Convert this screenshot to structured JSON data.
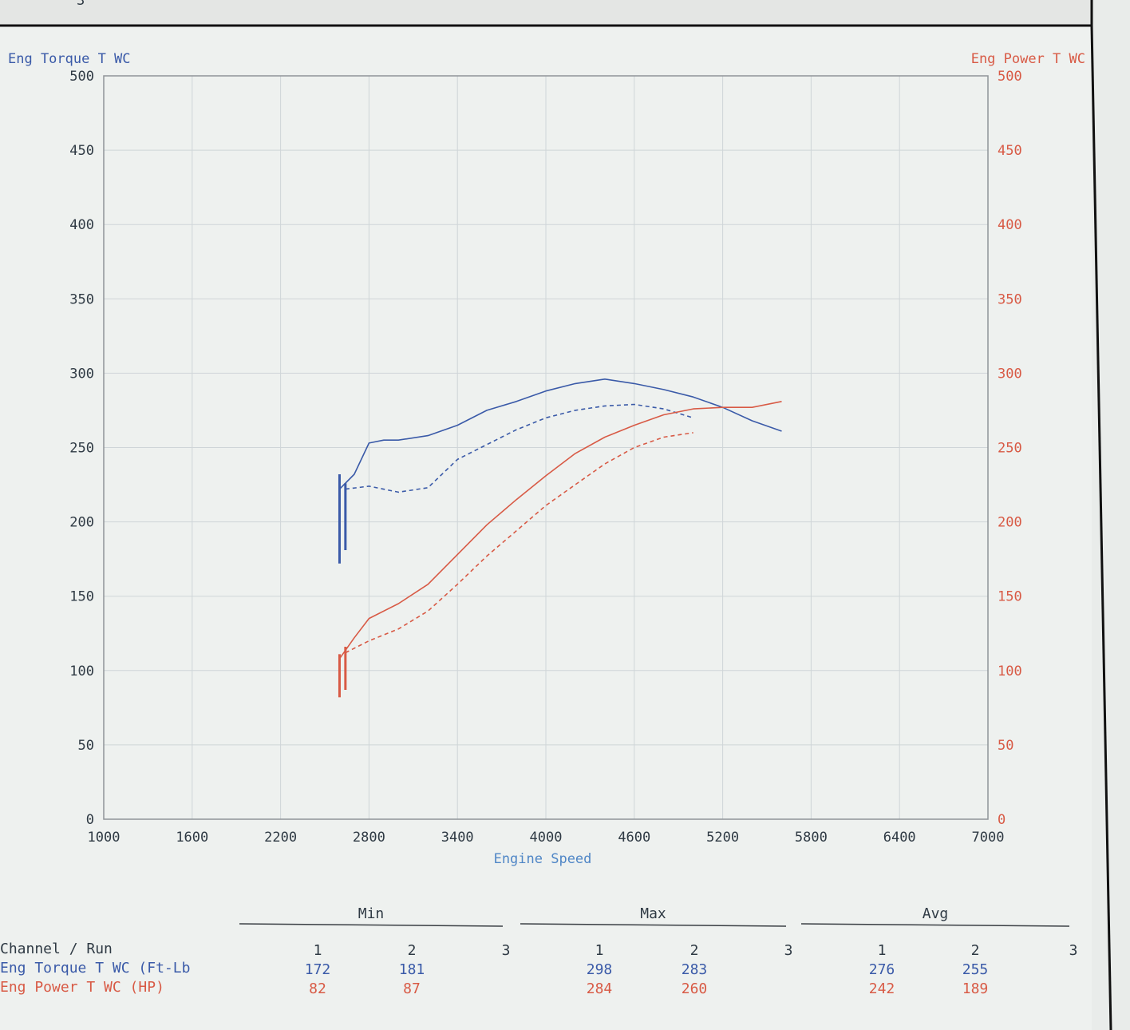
{
  "header": {
    "run_number_fragment": "3"
  },
  "colors": {
    "torque": "#3a5aa8",
    "power": "#d85a45",
    "grid": "#cfd5d8",
    "frame": "#8f9498",
    "text_dark": "#2f3a44",
    "paper": "#eef1ef"
  },
  "chart_data": {
    "type": "line",
    "xlabel": "Engine Speed",
    "y_left_label": "Eng Torque T WC",
    "y_right_label": "Eng Power T WC",
    "xlim": [
      1000,
      7000
    ],
    "ylim_left": [
      0,
      500
    ],
    "ylim_right": [
      0,
      500
    ],
    "x_ticks": [
      "1000",
      "1600",
      "2200",
      "2800",
      "3400",
      "4000",
      "4600",
      "5200",
      "5800",
      "6400",
      "7000"
    ],
    "y_ticks_left": [
      "500",
      "450",
      "400",
      "350",
      "300",
      "250",
      "200",
      "150",
      "100",
      "50",
      "0"
    ],
    "y_ticks_right": [
      "500",
      "450",
      "400",
      "350",
      "300",
      "250",
      "200",
      "150",
      "100",
      "50",
      "0"
    ],
    "grid": true,
    "series": [
      {
        "axis": "left",
        "style": "solid",
        "color": "torque",
        "spike": {
          "x": 2600,
          "y_top": 232,
          "y_bottom": 172
        },
        "points": [
          [
            2600,
            222
          ],
          [
            2700,
            232
          ],
          [
            2800,
            253
          ],
          [
            2900,
            255
          ],
          [
            3000,
            255
          ],
          [
            3200,
            258
          ],
          [
            3400,
            265
          ],
          [
            3600,
            275
          ],
          [
            3800,
            281
          ],
          [
            4000,
            288
          ],
          [
            4200,
            293
          ],
          [
            4400,
            296
          ],
          [
            4600,
            293
          ],
          [
            4800,
            289
          ],
          [
            5000,
            284
          ],
          [
            5200,
            277
          ],
          [
            5400,
            268
          ],
          [
            5600,
            261
          ]
        ]
      },
      {
        "axis": "left",
        "style": "dashed",
        "color": "torque",
        "spike": {
          "x": 2640,
          "y_top": 226,
          "y_bottom": 181
        },
        "points": [
          [
            2640,
            222
          ],
          [
            2800,
            224
          ],
          [
            3000,
            220
          ],
          [
            3200,
            223
          ],
          [
            3400,
            242
          ],
          [
            3600,
            252
          ],
          [
            3800,
            262
          ],
          [
            4000,
            270
          ],
          [
            4200,
            275
          ],
          [
            4400,
            278
          ],
          [
            4600,
            279
          ],
          [
            4800,
            276
          ],
          [
            5000,
            270
          ]
        ]
      },
      {
        "axis": "right",
        "style": "solid",
        "color": "power",
        "spike": {
          "x": 2600,
          "y_top": 111,
          "y_bottom": 82
        },
        "points": [
          [
            2600,
            108
          ],
          [
            2700,
            122
          ],
          [
            2800,
            135
          ],
          [
            3000,
            145
          ],
          [
            3200,
            158
          ],
          [
            3400,
            178
          ],
          [
            3600,
            198
          ],
          [
            3800,
            215
          ],
          [
            4000,
            231
          ],
          [
            4200,
            246
          ],
          [
            4400,
            257
          ],
          [
            4600,
            265
          ],
          [
            4800,
            272
          ],
          [
            5000,
            276
          ],
          [
            5200,
            277
          ],
          [
            5400,
            277
          ],
          [
            5600,
            281
          ]
        ]
      },
      {
        "axis": "right",
        "style": "dashed",
        "color": "power",
        "spike": {
          "x": 2640,
          "y_top": 116,
          "y_bottom": 87
        },
        "points": [
          [
            2640,
            112
          ],
          [
            2800,
            120
          ],
          [
            3000,
            128
          ],
          [
            3200,
            140
          ],
          [
            3400,
            158
          ],
          [
            3600,
            177
          ],
          [
            3800,
            194
          ],
          [
            4000,
            211
          ],
          [
            4200,
            225
          ],
          [
            4400,
            239
          ],
          [
            4600,
            250
          ],
          [
            4800,
            257
          ],
          [
            5000,
            260
          ]
        ]
      }
    ]
  },
  "table": {
    "group_headers": [
      "Min",
      "Max",
      "Avg"
    ],
    "run_header": "Channel / Run",
    "run_numbers": [
      "1",
      "2",
      "3",
      "1",
      "2",
      "3",
      "1",
      "2",
      "3"
    ],
    "rows": [
      {
        "label": "Eng Torque T WC (Ft-Lb",
        "color": "torque",
        "values": [
          "172",
          "181",
          "",
          "298",
          "283",
          "",
          "276",
          "255",
          ""
        ]
      },
      {
        "label": "Eng Power T WC (HP)",
        "color": "power",
        "values": [
          "82",
          "87",
          "",
          "284",
          "260",
          "",
          "242",
          "189",
          ""
        ]
      }
    ]
  }
}
